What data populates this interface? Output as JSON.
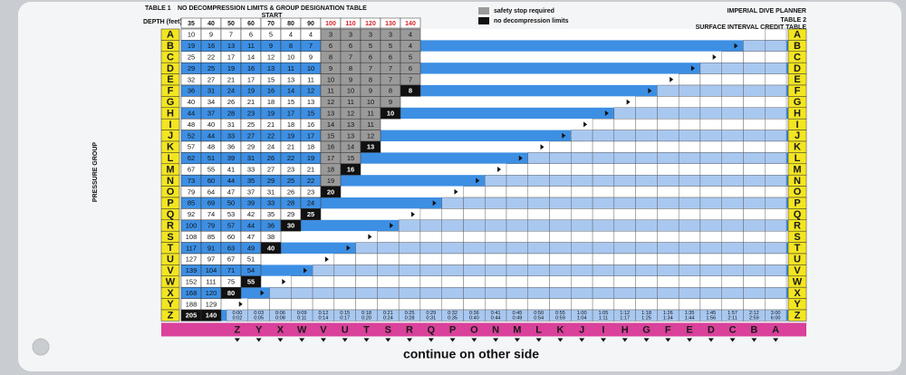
{
  "table1": {
    "label": "TABLE 1",
    "title": "NO DECOMPRESSION LIMITS & GROUP DESIGNATION TABLE",
    "start": "START",
    "depth_label": "DEPTH (feet)",
    "depths": [
      35,
      40,
      50,
      60,
      70,
      80,
      90,
      100,
      110,
      120,
      130,
      140
    ],
    "groups": [
      "A",
      "B",
      "C",
      "D",
      "E",
      "F",
      "G",
      "H",
      "I",
      "J",
      "K",
      "L",
      "M",
      "N",
      "O",
      "P",
      "Q",
      "R",
      "S",
      "T",
      "U",
      "V",
      "W",
      "X",
      "Y",
      "Z"
    ],
    "columns": [
      [
        10,
        19,
        25,
        29,
        32,
        36,
        40,
        44,
        48,
        52,
        57,
        62,
        67,
        73,
        79,
        85,
        92,
        100,
        108,
        117,
        127,
        139,
        152,
        168,
        188,
        205
      ],
      [
        9,
        16,
        22,
        25,
        27,
        31,
        34,
        37,
        40,
        44,
        48,
        51,
        55,
        60,
        64,
        69,
        74,
        79,
        85,
        91,
        97,
        104,
        111,
        120,
        129,
        140
      ],
      [
        7,
        13,
        17,
        19,
        21,
        24,
        26,
        28,
        31,
        33,
        36,
        39,
        41,
        44,
        47,
        50,
        53,
        57,
        60,
        63,
        67,
        71,
        75,
        80
      ],
      [
        6,
        11,
        14,
        16,
        17,
        19,
        21,
        23,
        25,
        27,
        29,
        31,
        33,
        35,
        37,
        39,
        42,
        44,
        47,
        49,
        51,
        54,
        55
      ],
      [
        5,
        9,
        12,
        13,
        15,
        16,
        18,
        19,
        21,
        22,
        24,
        26,
        27,
        29,
        31,
        33,
        35,
        36,
        38,
        40
      ],
      [
        4,
        8,
        10,
        11,
        13,
        14,
        15,
        17,
        18,
        19,
        21,
        22,
        23,
        25,
        26,
        28,
        29,
        30
      ],
      [
        4,
        7,
        9,
        10,
        11,
        12,
        13,
        15,
        16,
        17,
        18,
        19,
        21,
        22,
        23,
        24,
        25
      ],
      [
        3,
        6,
        8,
        9,
        10,
        11,
        12,
        13,
        14,
        15,
        16,
        17,
        18,
        19,
        20
      ],
      [
        3,
        6,
        7,
        8,
        9,
        10,
        11,
        12,
        13,
        13,
        14,
        15,
        16
      ],
      [
        3,
        5,
        6,
        7,
        8,
        9,
        10,
        11,
        11,
        12,
        13
      ],
      [
        3,
        5,
        6,
        7,
        7,
        8,
        9,
        10
      ],
      [
        4,
        4,
        5,
        6,
        7,
        8
      ]
    ]
  },
  "pressure_group": "PRESSURE GROUP",
  "legend": [
    "safety stop required",
    "no decompression limits"
  ],
  "planner": "IMPERIAL DIVE PLANNER",
  "table2": {
    "label": "TABLE 2",
    "title": "SURFACE INTERVAL CREDIT TABLE",
    "bottom_groups": [
      "Z",
      "Y",
      "X",
      "W",
      "V",
      "U",
      "T",
      "S",
      "R",
      "Q",
      "P",
      "O",
      "N",
      "M",
      "L",
      "K",
      "J",
      "I",
      "H",
      "G",
      "F",
      "E",
      "D",
      "C",
      "B",
      "A"
    ],
    "row_z": [
      [
        "0:00",
        "0:02"
      ],
      [
        "0:03",
        "0:05"
      ],
      [
        "0:06",
        "0:08"
      ],
      [
        "0:09",
        "0:11"
      ],
      [
        "0:12",
        "0:14"
      ],
      [
        "0:15",
        "0:17"
      ],
      [
        "0:18",
        "0:20"
      ],
      [
        "0:21",
        "0:24"
      ],
      [
        "0:25",
        "0:28"
      ],
      [
        "0:29",
        "0:31"
      ],
      [
        "0:32",
        "0:35"
      ],
      [
        "0:36",
        "0:40"
      ],
      [
        "0:41",
        "0:44"
      ],
      [
        "0:45",
        "0:49"
      ],
      [
        "0:50",
        "0:54"
      ],
      [
        "0:55",
        "0:59"
      ],
      [
        "1:00",
        "1:04"
      ],
      [
        "1:05",
        "1:11"
      ],
      [
        "1:12",
        "1:17"
      ],
      [
        "1:18",
        "1:25"
      ],
      [
        "1:26",
        "1:34"
      ],
      [
        "1:35",
        "1:44"
      ],
      [
        "1:45",
        "1:56"
      ],
      [
        "1:57",
        "2:11"
      ],
      [
        "2:12",
        "2:59"
      ],
      [
        "3:00",
        "6:00"
      ]
    ]
  },
  "footer": "continue on other side"
}
